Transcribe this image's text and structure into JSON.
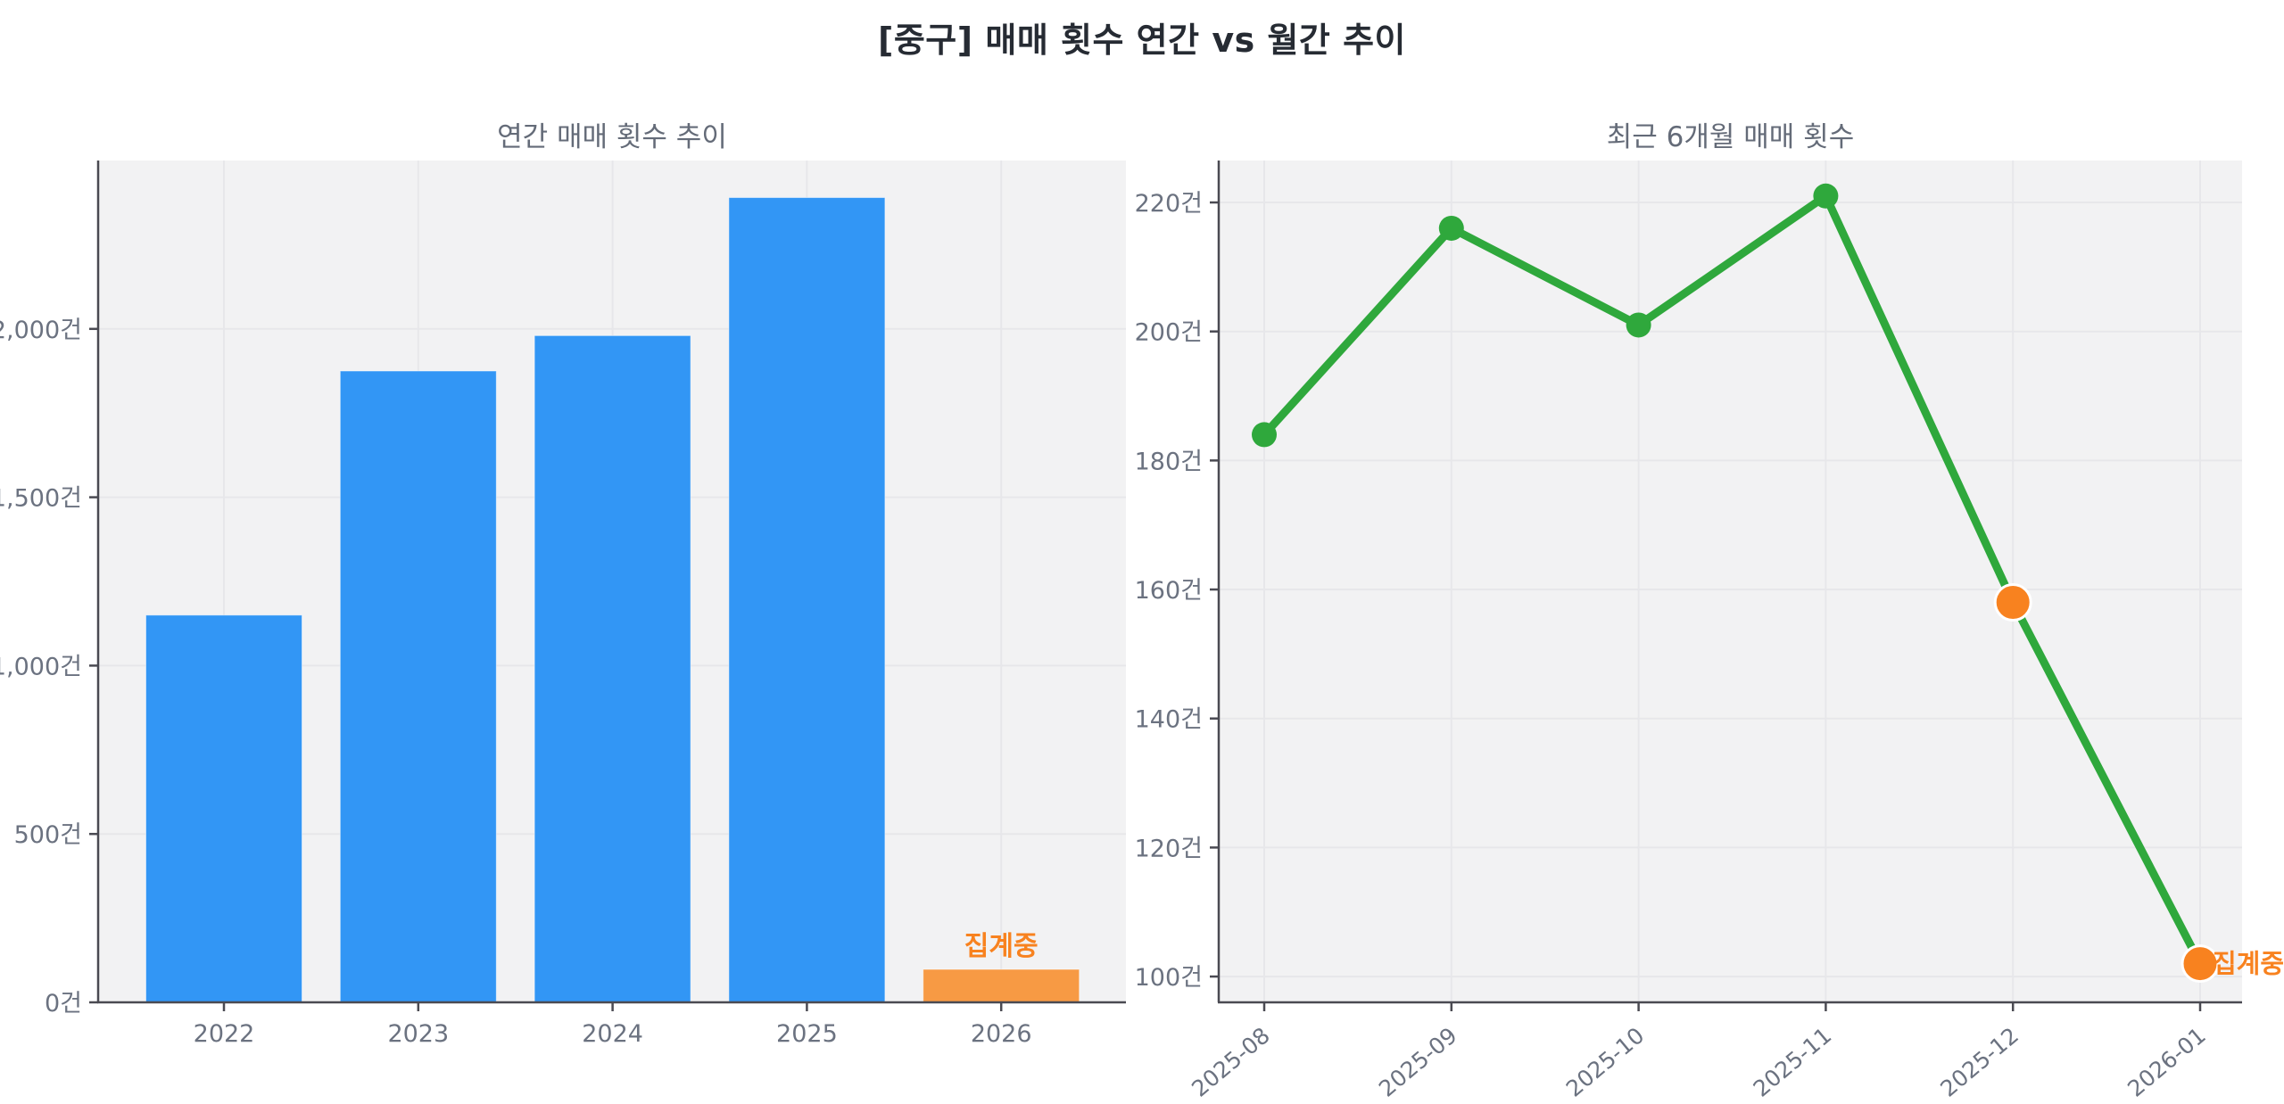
{
  "page": {
    "title": "[중구] 매매 횟수 연간 vs 월간 추이"
  },
  "colors": {
    "bar_blue": "#3296f5",
    "bar_orange": "#f79a44",
    "accent_orange": "#f8821f",
    "line_green": "#2fa83c",
    "plot_background": "#f2f2f3",
    "gridline": "#e7e7ea",
    "spine": "#4a4a52",
    "tick_label": "#6b7280",
    "title_dark": "#262b33",
    "subtitle_gray": "#646b78"
  },
  "chart_data": [
    {
      "type": "bar",
      "title": "연간 매매 횟수 추이",
      "categories": [
        "2022",
        "2023",
        "2024",
        "2025",
        "2026"
      ],
      "values": [
        1150,
        1875,
        1980,
        2390,
        98
      ],
      "bar_colors": [
        "#3296f5",
        "#3296f5",
        "#3296f5",
        "#3296f5",
        "#f79a44"
      ],
      "ylim": [
        0,
        2500
      ],
      "yticks": [
        0,
        500,
        1000,
        1500,
        2000
      ],
      "unit": "건",
      "grid": true,
      "legend": "none",
      "annotation": {
        "text": "집계중",
        "category": "2026",
        "color": "#f8821f"
      }
    },
    {
      "type": "line",
      "title": "최근 6개월 매매 횟수",
      "x": [
        "2025-08",
        "2025-09",
        "2025-10",
        "2025-11",
        "2025-12",
        "2026-01"
      ],
      "values": [
        184,
        216,
        201,
        221,
        158,
        102
      ],
      "line_color": "#2fa83c",
      "point_colors": [
        "#2fa83c",
        "#2fa83c",
        "#2fa83c",
        "#2fa83c",
        "#f8821f",
        "#f8821f"
      ],
      "ylim": [
        96,
        226.5
      ],
      "yticks": [
        100,
        120,
        140,
        160,
        180,
        200,
        220
      ],
      "unit": "건",
      "grid": true,
      "legend": "none",
      "x_label_rotation_deg": -40,
      "annotation": {
        "text": "집계중",
        "x": "2026-01",
        "color": "#f8821f"
      }
    }
  ]
}
